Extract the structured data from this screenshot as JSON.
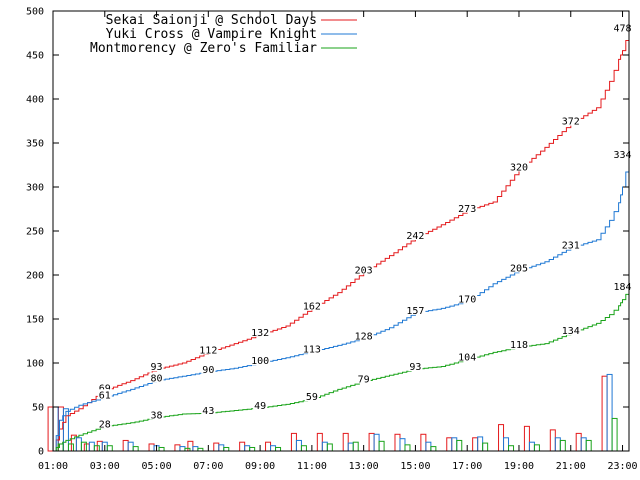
{
  "chart_data": {
    "type": "line",
    "title": "",
    "xlabel": "",
    "ylabel": "",
    "xlim": [
      1,
      23.25
    ],
    "ylim": [
      0,
      500
    ],
    "x_ticks": [
      1,
      3,
      5,
      7,
      9,
      11,
      13,
      15,
      17,
      19,
      21,
      23
    ],
    "x_tick_labels": [
      "01:00",
      "03:00",
      "05:00",
      "07:00",
      "09:00",
      "11:00",
      "13:00",
      "15:00",
      "17:00",
      "19:00",
      "21:00",
      "23:00"
    ],
    "y_ticks": [
      0,
      50,
      100,
      150,
      200,
      250,
      300,
      350,
      400,
      450,
      500
    ],
    "y_tick_labels": [
      "0",
      "50",
      "100",
      "150",
      "200",
      "250",
      "300",
      "350",
      "400",
      "450",
      "500"
    ],
    "grid": false,
    "legend_position": "top-left",
    "series": [
      {
        "name": "Sekai Saionji @ School Days",
        "color": "#e41a1c",
        "cumulative": {
          "x": [
            1,
            1.25,
            1.5,
            2,
            3,
            4,
            5,
            6,
            7,
            8,
            9,
            10,
            11,
            12,
            13,
            14,
            15,
            16,
            17,
            18,
            19,
            20,
            21,
            22,
            22.5,
            22.85,
            23,
            23.25
          ],
          "y": [
            0,
            25,
            40,
            48,
            69,
            80,
            93,
            100,
            112,
            122,
            132,
            142,
            162,
            180,
            203,
            222,
            242,
            257,
            273,
            283,
            320,
            345,
            372,
            390,
            420,
            445,
            455,
            478
          ]
        },
        "labels": [
          {
            "x": 3,
            "y": 69,
            "text": "69"
          },
          {
            "x": 5,
            "y": 93,
            "text": "93"
          },
          {
            "x": 7,
            "y": 112,
            "text": "112"
          },
          {
            "x": 9,
            "y": 132,
            "text": "132"
          },
          {
            "x": 11,
            "y": 162,
            "text": "162"
          },
          {
            "x": 13,
            "y": 203,
            "text": "203"
          },
          {
            "x": 15,
            "y": 242,
            "text": "242"
          },
          {
            "x": 17,
            "y": 273,
            "text": "273"
          },
          {
            "x": 19,
            "y": 320,
            "text": "320"
          },
          {
            "x": 21,
            "y": 372,
            "text": "372"
          },
          {
            "x": 23,
            "y": 478,
            "text": "478"
          }
        ],
        "bars": [
          {
            "x": 1.1,
            "v": 50
          },
          {
            "x": 1.5,
            "v": 50
          },
          {
            "x": 2,
            "v": 18
          },
          {
            "x": 2.5,
            "v": 8
          },
          {
            "x": 3,
            "v": 11
          },
          {
            "x": 4,
            "v": 12
          },
          {
            "x": 5,
            "v": 8
          },
          {
            "x": 6,
            "v": 7
          },
          {
            "x": 6.5,
            "v": 11
          },
          {
            "x": 7.5,
            "v": 9
          },
          {
            "x": 8.5,
            "v": 10
          },
          {
            "x": 9.5,
            "v": 10
          },
          {
            "x": 10.5,
            "v": 20
          },
          {
            "x": 11.5,
            "v": 20
          },
          {
            "x": 12.5,
            "v": 20
          },
          {
            "x": 13.5,
            "v": 20
          },
          {
            "x": 14.5,
            "v": 19
          },
          {
            "x": 15.5,
            "v": 19
          },
          {
            "x": 16.5,
            "v": 15
          },
          {
            "x": 17.5,
            "v": 15
          },
          {
            "x": 18.5,
            "v": 30
          },
          {
            "x": 19.5,
            "v": 28
          },
          {
            "x": 20.5,
            "v": 24
          },
          {
            "x": 21.5,
            "v": 20
          },
          {
            "x": 22.5,
            "v": 85
          }
        ]
      },
      {
        "name": "Yuki Cross @ Vampire Knight",
        "color": "#1f78d4",
        "cumulative": {
          "x": [
            1,
            1.25,
            1.5,
            2,
            3,
            4,
            5,
            6,
            7,
            8,
            9,
            10,
            11,
            12,
            13,
            14,
            15,
            16,
            17,
            18,
            19,
            20,
            21,
            22,
            22.5,
            22.85,
            23,
            23.25
          ],
          "y": [
            0,
            35,
            45,
            52,
            61,
            70,
            80,
            85,
            90,
            94,
            100,
            106,
            113,
            120,
            128,
            140,
            157,
            162,
            170,
            190,
            205,
            215,
            231,
            240,
            262,
            282,
            300,
            334
          ]
        },
        "labels": [
          {
            "x": 3,
            "y": 61,
            "text": "61"
          },
          {
            "x": 5,
            "y": 80,
            "text": "80"
          },
          {
            "x": 7,
            "y": 90,
            "text": "90"
          },
          {
            "x": 9,
            "y": 100,
            "text": "100"
          },
          {
            "x": 11,
            "y": 113,
            "text": "113"
          },
          {
            "x": 13,
            "y": 128,
            "text": "128"
          },
          {
            "x": 15,
            "y": 157,
            "text": "157"
          },
          {
            "x": 17,
            "y": 170,
            "text": "170"
          },
          {
            "x": 19,
            "y": 205,
            "text": "205"
          },
          {
            "x": 21,
            "y": 231,
            "text": "231"
          },
          {
            "x": 23,
            "y": 334,
            "text": "334"
          }
        ],
        "bars": [
          {
            "x": 1.1,
            "v": 50
          },
          {
            "x": 1.5,
            "v": 48
          },
          {
            "x": 2,
            "v": 15
          },
          {
            "x": 2.5,
            "v": 10
          },
          {
            "x": 3,
            "v": 10
          },
          {
            "x": 4,
            "v": 10
          },
          {
            "x": 5,
            "v": 6
          },
          {
            "x": 6,
            "v": 5
          },
          {
            "x": 6.5,
            "v": 5
          },
          {
            "x": 7.5,
            "v": 7
          },
          {
            "x": 8.5,
            "v": 6
          },
          {
            "x": 9.5,
            "v": 6
          },
          {
            "x": 10.5,
            "v": 12
          },
          {
            "x": 11.5,
            "v": 10
          },
          {
            "x": 12.5,
            "v": 9
          },
          {
            "x": 13.5,
            "v": 19
          },
          {
            "x": 14.5,
            "v": 14
          },
          {
            "x": 15.5,
            "v": 10
          },
          {
            "x": 16.5,
            "v": 15
          },
          {
            "x": 17.5,
            "v": 16
          },
          {
            "x": 18.5,
            "v": 15
          },
          {
            "x": 19.5,
            "v": 10
          },
          {
            "x": 20.5,
            "v": 15
          },
          {
            "x": 21.5,
            "v": 15
          },
          {
            "x": 22.5,
            "v": 87
          }
        ]
      },
      {
        "name": "Montmorency @ Zero's Familiar",
        "color": "#1aa31a",
        "cumulative": {
          "x": [
            1,
            1.25,
            1.5,
            2,
            3,
            4,
            5,
            6,
            7,
            8,
            9,
            10,
            11,
            12,
            13,
            14,
            15,
            16,
            17,
            18,
            19,
            20,
            21,
            22,
            22.5,
            22.85,
            23,
            23.25
          ],
          "y": [
            0,
            8,
            12,
            18,
            28,
            32,
            38,
            42,
            43,
            46,
            49,
            53,
            59,
            70,
            79,
            86,
            93,
            96,
            104,
            112,
            118,
            122,
            134,
            145,
            155,
            165,
            172,
            184
          ]
        },
        "labels": [
          {
            "x": 3,
            "y": 28,
            "text": "28"
          },
          {
            "x": 5,
            "y": 38,
            "text": "38"
          },
          {
            "x": 7,
            "y": 43,
            "text": "43"
          },
          {
            "x": 9,
            "y": 49,
            "text": "49"
          },
          {
            "x": 11,
            "y": 59,
            "text": "59"
          },
          {
            "x": 13,
            "y": 79,
            "text": "79"
          },
          {
            "x": 15,
            "y": 93,
            "text": "93"
          },
          {
            "x": 17,
            "y": 104,
            "text": "104"
          },
          {
            "x": 19,
            "y": 118,
            "text": "118"
          },
          {
            "x": 21,
            "y": 134,
            "text": "134"
          },
          {
            "x": 23,
            "y": 184,
            "text": "184"
          }
        ],
        "bars": [
          {
            "x": 1.1,
            "v": 8
          },
          {
            "x": 1.5,
            "v": 8
          },
          {
            "x": 2,
            "v": 10
          },
          {
            "x": 2.5,
            "v": 6
          },
          {
            "x": 3,
            "v": 6
          },
          {
            "x": 4,
            "v": 5
          },
          {
            "x": 5,
            "v": 4
          },
          {
            "x": 6,
            "v": 3
          },
          {
            "x": 6.5,
            "v": 3
          },
          {
            "x": 7.5,
            "v": 4
          },
          {
            "x": 8.5,
            "v": 4
          },
          {
            "x": 9.5,
            "v": 4
          },
          {
            "x": 10.5,
            "v": 6
          },
          {
            "x": 11.5,
            "v": 8
          },
          {
            "x": 12.5,
            "v": 10
          },
          {
            "x": 13.5,
            "v": 11
          },
          {
            "x": 14.5,
            "v": 7
          },
          {
            "x": 15.5,
            "v": 5
          },
          {
            "x": 16.5,
            "v": 12
          },
          {
            "x": 17.5,
            "v": 9
          },
          {
            "x": 18.5,
            "v": 6
          },
          {
            "x": 19.5,
            "v": 7
          },
          {
            "x": 20.5,
            "v": 12
          },
          {
            "x": 21.5,
            "v": 12
          },
          {
            "x": 22.5,
            "v": 37
          }
        ]
      }
    ]
  }
}
